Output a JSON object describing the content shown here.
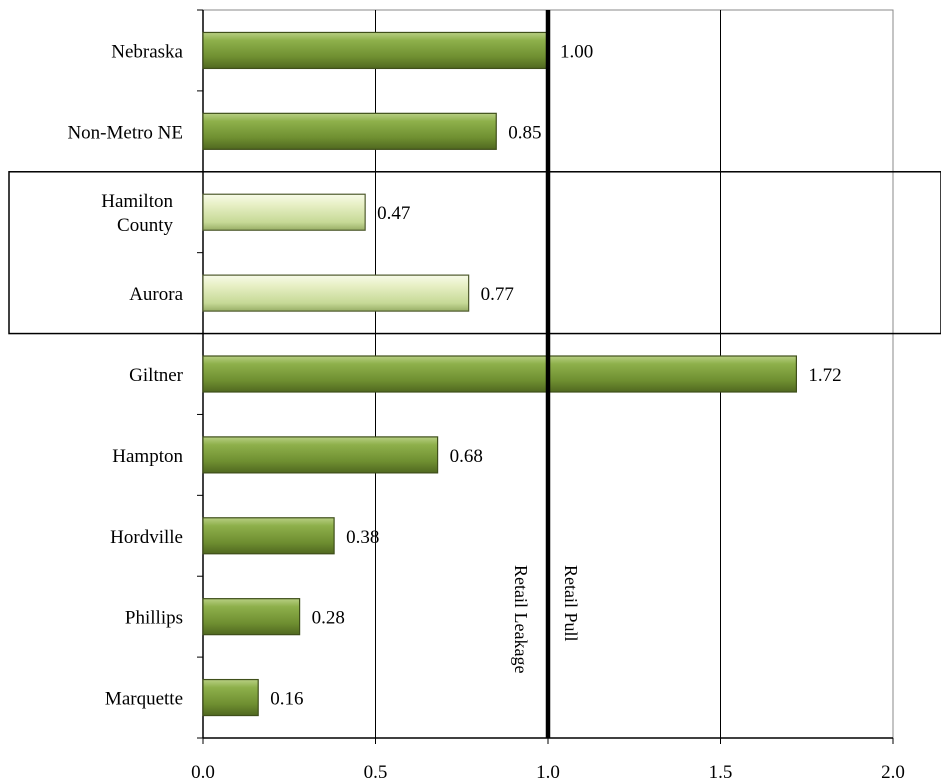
{
  "chart_data": {
    "type": "bar",
    "orientation": "horizontal",
    "title": "",
    "xlabel": "",
    "ylabel": "",
    "xlim": [
      0,
      2.0
    ],
    "categories": [
      "Nebraska",
      "Non-Metro NE",
      [
        "Hamilton",
        "County"
      ],
      "Aurora",
      "Giltner",
      "Hampton",
      "Hordville",
      "Phillips",
      "Marquette"
    ],
    "values": [
      1.0,
      0.85,
      0.47,
      0.77,
      1.72,
      0.68,
      0.38,
      0.28,
      0.16
    ],
    "data_labels": [
      "1.00",
      "0.85",
      "0.47",
      "0.77",
      "1.72",
      "0.68",
      "0.38",
      "0.28",
      "0.16"
    ],
    "highlighted_categories": [
      2,
      3
    ],
    "x_ticks": [
      0.0,
      0.5,
      1.0,
      1.5,
      2.0
    ],
    "x_tick_labels": [
      "0.0",
      "0.5",
      "1.0",
      "1.5",
      "2.0"
    ],
    "reference_line": {
      "value": 1.0,
      "left_label": "Retail Leakage",
      "right_label": "Retail Pull"
    },
    "grid": true,
    "legend": "none",
    "colors": {
      "bar_main": "#7a9b3c",
      "bar_highlight": "#dbe8b3",
      "reference_line": "#000000",
      "grid": "#000000"
    }
  }
}
